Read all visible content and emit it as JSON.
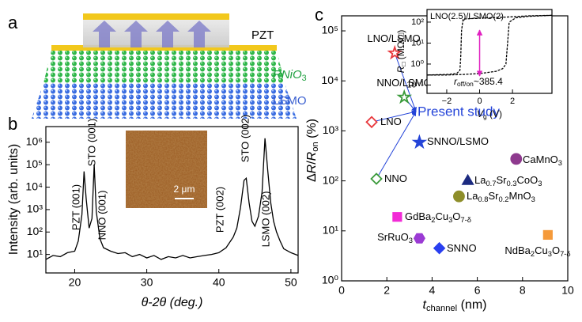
{
  "schematic": {
    "label": "a",
    "layers": [
      "PZT",
      "RNiO3",
      "LSMO"
    ]
  },
  "chart_data": [
    {
      "type": "line",
      "label": "b",
      "xlabel": "θ-2θ (deg.)",
      "ylabel": "Intensity (arb. units)",
      "xlim": [
        16,
        51
      ],
      "ylim": [
        1.5,
        5000000
      ],
      "log_y": true,
      "xticks": [
        20,
        30,
        40,
        50
      ],
      "yticks": [
        {
          "value": 10,
          "label": "10¹"
        },
        {
          "value": 100,
          "label": "10²"
        },
        {
          "value": 1000,
          "label": "10³"
        },
        {
          "value": 10000,
          "label": "10⁴"
        },
        {
          "value": 100000,
          "label": "10⁵"
        },
        {
          "value": 1000000,
          "label": "10⁶"
        }
      ],
      "series": [
        {
          "color": "#000000",
          "x": [
            16,
            17,
            18,
            19,
            20,
            20.5,
            21,
            21.3,
            21.6,
            22,
            22.4,
            22.7,
            23,
            23.5,
            24,
            25,
            26,
            27,
            28,
            29,
            30,
            31,
            32,
            33,
            34,
            35,
            36,
            37,
            38,
            39,
            40,
            41,
            42,
            42.5,
            43,
            43.5,
            43.8,
            44.2,
            44.6,
            45,
            45.5,
            46,
            46.4,
            46.8,
            47.2,
            47.6,
            48,
            48.5,
            49,
            50,
            51
          ],
          "values": [
            6,
            9,
            8,
            12,
            14,
            40,
            600,
            50000,
            3000,
            150,
            400,
            100000,
            800,
            50,
            20,
            14,
            11,
            12,
            8,
            10,
            7,
            9,
            6,
            8,
            7,
            9,
            7,
            8,
            9,
            10,
            12,
            20,
            60,
            150,
            1200,
            20000,
            25000,
            2000,
            300,
            180,
            500,
            6000,
            1500000,
            50000,
            2000,
            300,
            100,
            40,
            18,
            12,
            9
          ]
        }
      ],
      "annotations": [
        "PZT (001)",
        "STO (001)",
        "NNO (001)",
        "PZT (002)",
        "STO (002)",
        "LSMO (002)"
      ],
      "inset_scale_bar": "2 μm"
    },
    {
      "type": "scatter",
      "label": "c",
      "xlabel": [
        "t",
        "channel",
        " (nm)"
      ],
      "ylabel": [
        "Δ",
        "R",
        "/",
        "R",
        "on",
        " (%)"
      ],
      "xlim": [
        0,
        10
      ],
      "ylim": [
        1,
        200000
      ],
      "log_y": true,
      "xticks": [
        0,
        2,
        4,
        6,
        8,
        10
      ],
      "yticks": [
        {
          "value": 1,
          "label": "10⁰"
        },
        {
          "value": 10,
          "label": "10¹"
        },
        {
          "value": 100,
          "label": "10²"
        },
        {
          "value": 1000,
          "label": "10³"
        },
        {
          "value": 10000,
          "label": "10⁴"
        },
        {
          "value": 100000,
          "label": "10⁵"
        }
      ],
      "points": [
        {
          "label": "LNO/LSMO",
          "x": 2.35,
          "y": 36000,
          "color": "#e8383d",
          "marker": "star",
          "filled": false,
          "present_study": true
        },
        {
          "label": "NNO/LSMO",
          "x": 2.77,
          "y": 4700,
          "color": "#3a9a3a",
          "marker": "star",
          "filled": false,
          "present_study": true
        },
        {
          "label": "LNO",
          "x": 1.33,
          "y": 1500,
          "color": "#e8383d",
          "marker": "diamond",
          "filled": false,
          "present_study": true
        },
        {
          "label": "SNNO/LSMO",
          "x": 3.44,
          "y": 590,
          "color": "#2444d8",
          "marker": "star",
          "filled": true,
          "present_study": false
        },
        {
          "label": "NNO",
          "x": 1.54,
          "y": 110,
          "color": "#3a9a3a",
          "marker": "diamond",
          "filled": false,
          "present_study": true
        },
        {
          "label": "CaMnO3",
          "x": 7.72,
          "y": 275,
          "color": "#8e3a8e",
          "marker": "circle",
          "filled": true,
          "present_study": false
        },
        {
          "label": "La0.7Sr0.3CoO3",
          "x": 5.58,
          "y": 102,
          "color": "#1c2a80",
          "marker": "triangle",
          "filled": true,
          "present_study": false
        },
        {
          "label": "La0.8Sr0.2MnO3",
          "x": 5.19,
          "y": 49,
          "color": "#8e8e2a",
          "marker": "circle",
          "filled": true,
          "present_study": false
        },
        {
          "label": "GdBa2Cu3O7-δ",
          "x": 2.46,
          "y": 19,
          "color": "#f22bd6",
          "marker": "square",
          "filled": true,
          "present_study": false
        },
        {
          "label": "SrRuO3",
          "x": 3.44,
          "y": 7.1,
          "color": "#9b3bd4",
          "marker": "hexagon",
          "filled": true,
          "present_study": false
        },
        {
          "label": "SNNO",
          "x": 4.32,
          "y": 4.5,
          "color": "#2a3ff0",
          "marker": "diamond",
          "filled": true,
          "present_study": false
        },
        {
          "label": "NdBa2Cu3O7-δ",
          "x": 9.12,
          "y": 8.3,
          "color": "#f59a3a",
          "marker": "square",
          "filled": true,
          "present_study": false
        }
      ],
      "present_study_label": "Present study",
      "inset": {
        "type": "line",
        "title": "LNO(2.5)/LSMO(2)",
        "xlabel": [
          "V",
          "g",
          " (V)"
        ],
        "ylabel": [
          "R",
          "□",
          " (MΩ/□)"
        ],
        "xlim": [
          -3.2,
          4.4
        ],
        "ylim": [
          0.04,
          400
        ],
        "log_y": true,
        "xticks": [
          {
            "value": -2,
            "label": "−2"
          },
          0,
          2
        ],
        "yticks": [
          {
            "value": 0.1,
            "label": "10⁻¹"
          },
          {
            "value": 1,
            "label": "10⁰"
          },
          {
            "value": 10,
            "label": "10¹"
          },
          {
            "value": 100,
            "label": "10²"
          }
        ],
        "annotation": [
          "r",
          "off/on",
          "~385.4"
        ],
        "series": [
          {
            "color": "#000000",
            "x": [
              4.4,
              3,
              2,
              1,
              0,
              -1,
              -1.1,
              -1.15,
              -1.2,
              -1.4,
              -2,
              -3.2
            ],
            "values": [
              210,
              200,
              180,
              165,
              155,
              140,
              40,
              2,
              0.5,
              0.35,
              0.32,
              0.3
            ]
          },
          {
            "color": "#000000",
            "x": [
              -3.2,
              -2,
              -1,
              0,
              1,
              1.4,
              1.6,
              1.7,
              1.8,
              2.2,
              3,
              4.4
            ],
            "values": [
              0.3,
              0.3,
              0.32,
              0.35,
              0.45,
              0.6,
              1,
              10,
              100,
              160,
              190,
              210
            ]
          }
        ]
      }
    }
  ]
}
